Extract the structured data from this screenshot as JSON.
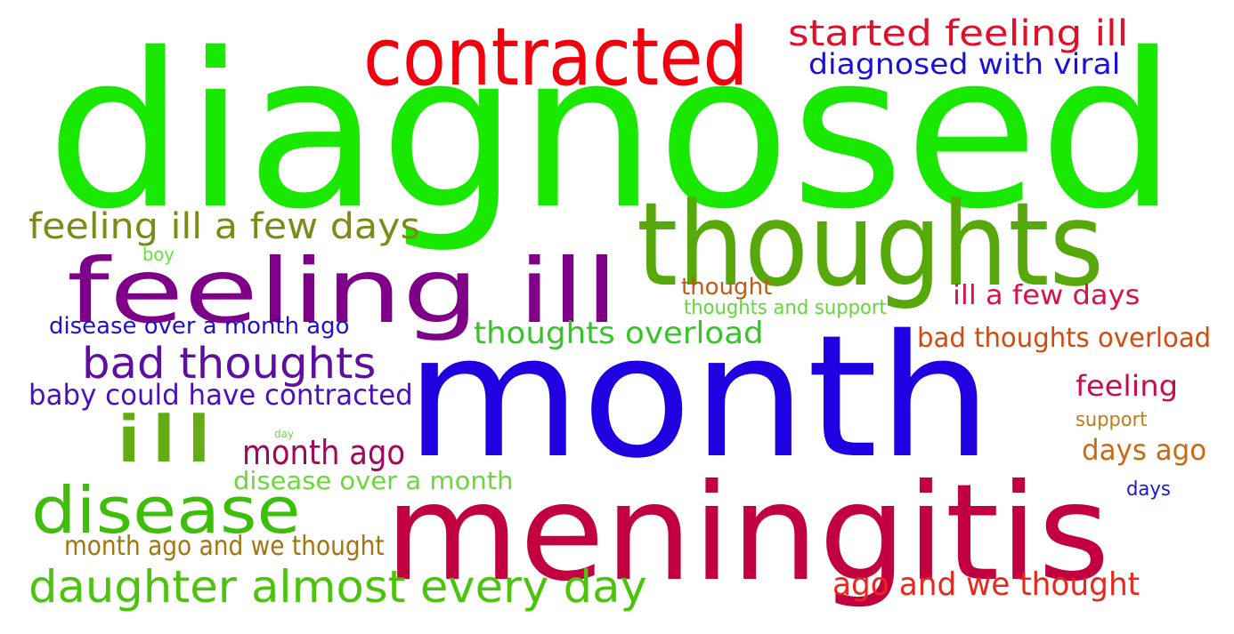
{
  "words": [
    {
      "text": "diagnosed",
      "color": "#19e800"
    },
    {
      "text": "month",
      "color": "#1f00e0"
    },
    {
      "text": "meningitis",
      "color": "#c20040"
    },
    {
      "text": "thoughts",
      "color": "#57a80a"
    },
    {
      "text": "feeling ill",
      "color": "#7e0088"
    },
    {
      "text": "contracted",
      "color": "#f2000e"
    },
    {
      "text": "disease",
      "color": "#3dbf0a"
    },
    {
      "text": "ill",
      "color": "#64ac14"
    },
    {
      "text": "daughter almost every day",
      "color": "#4cc40e"
    },
    {
      "text": "bad thoughts",
      "color": "#5e0fa0"
    },
    {
      "text": "feeling ill a few days",
      "color": "#7e8a18"
    },
    {
      "text": "started feeling ill",
      "color": "#e0102c"
    },
    {
      "text": "diagnosed with viral",
      "color": "#1a10d8"
    },
    {
      "text": "thoughts overload",
      "color": "#36c428"
    },
    {
      "text": "month ago",
      "color": "#a0085e"
    },
    {
      "text": "ago and we thought",
      "color": "#e8281c"
    },
    {
      "text": "baby could have contracted",
      "color": "#4a10c0"
    },
    {
      "text": "disease over a month ago",
      "color": "#2010d0"
    },
    {
      "text": "disease over a month",
      "color": "#6ad83a"
    },
    {
      "text": "month ago and we thought",
      "color": "#a0760e"
    },
    {
      "text": "bad thoughts overload",
      "color": "#d24a0e"
    },
    {
      "text": "ill a few days",
      "color": "#d8104e"
    },
    {
      "text": "feeling",
      "color": "#c80e48"
    },
    {
      "text": "days ago",
      "color": "#c86a12"
    },
    {
      "text": "thought",
      "color": "#c45a12"
    },
    {
      "text": "thoughts and support",
      "color": "#62d83a"
    },
    {
      "text": "support",
      "color": "#c07a16"
    },
    {
      "text": "days",
      "color": "#1e14d8"
    },
    {
      "text": "boy",
      "color": "#6ae040"
    },
    {
      "text": "day",
      "color": "#6ae040"
    }
  ]
}
